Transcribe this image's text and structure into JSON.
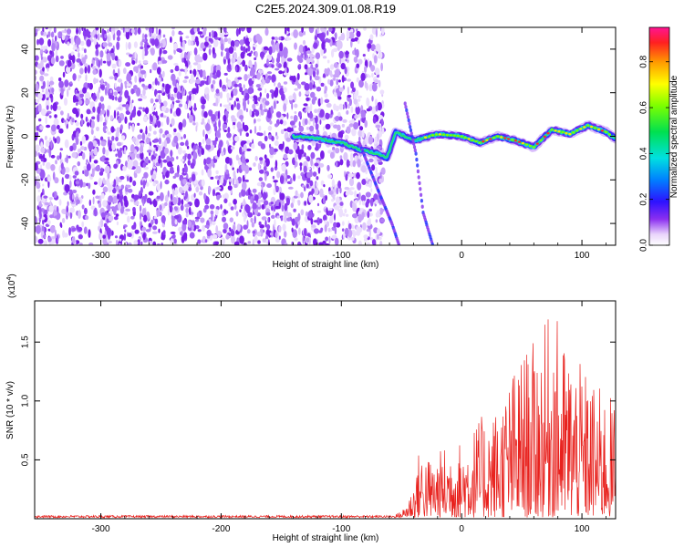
{
  "title": "C2E5.2024.309.01.08.R19",
  "chart_data": [
    {
      "type": "heatmap",
      "xlabel": "Height of straight line (km)",
      "ylabel": "Frequency (Hz)",
      "xlim": [
        -355,
        128
      ],
      "ylim": [
        -50,
        50
      ],
      "xticks": [
        "-300",
        "-200",
        "-100",
        "0",
        "100"
      ],
      "yticks": [
        "-40",
        "-20",
        "0",
        "20",
        "40"
      ],
      "colorbar": {
        "label": "Normalized spectral amplitude",
        "range": [
          0,
          0.95
        ],
        "ticks": [
          "0.0",
          "0.2",
          "0.4",
          "0.6",
          "0.8"
        ]
      },
      "noise_region_x": [
        -355,
        -73
      ],
      "ridge": [
        {
          "x": -140,
          "y": 0
        },
        {
          "x": -120,
          "y": -1
        },
        {
          "x": -100,
          "y": -3
        },
        {
          "x": -85,
          "y": -6
        },
        {
          "x": -70,
          "y": -8
        },
        {
          "x": -62,
          "y": -10
        },
        {
          "x": -55,
          "y": 2
        },
        {
          "x": -40,
          "y": -2
        },
        {
          "x": -20,
          "y": 1
        },
        {
          "x": 0,
          "y": 0
        },
        {
          "x": 15,
          "y": -3
        },
        {
          "x": 30,
          "y": 0
        },
        {
          "x": 45,
          "y": -2
        },
        {
          "x": 60,
          "y": -5
        },
        {
          "x": 75,
          "y": 3
        },
        {
          "x": 90,
          "y": 1
        },
        {
          "x": 105,
          "y": 5
        },
        {
          "x": 120,
          "y": 2
        },
        {
          "x": 128,
          "y": -1
        }
      ],
      "oblique_trace": [
        {
          "x": -47,
          "y": 15
        },
        {
          "x": -38,
          "y": -8
        },
        {
          "x": -32,
          "y": -35
        },
        {
          "x": -24,
          "y": -50
        }
      ],
      "oblique_trace_2": [
        {
          "x": -85,
          "y": -3
        },
        {
          "x": -70,
          "y": -24
        },
        {
          "x": -58,
          "y": -40
        },
        {
          "x": -52,
          "y": -50
        }
      ]
    },
    {
      "type": "line",
      "xlabel": "Height of straight line (km)",
      "ylabel": "SNR (10 * v/v)",
      "multiplier": "(x10",
      "multiplier_exp": "4",
      "multiplier_close": ")",
      "xlim": [
        -355,
        128
      ],
      "ylim": [
        0,
        1.85
      ],
      "xticks": [
        "-300",
        "-200",
        "-100",
        "0",
        "100"
      ],
      "yticks": [
        "0.5",
        "1.0",
        "1.5"
      ],
      "color": "#e8211d",
      "envelope": [
        {
          "x": -355,
          "y": 0.02
        },
        {
          "x": -60,
          "y": 0.02
        },
        {
          "x": -50,
          "y": 0.05
        },
        {
          "x": -45,
          "y": 0.15
        },
        {
          "x": -40,
          "y": 0.3
        },
        {
          "x": -35,
          "y": 0.6
        },
        {
          "x": -25,
          "y": 0.5
        },
        {
          "x": -10,
          "y": 0.65
        },
        {
          "x": 0,
          "y": 0.65
        },
        {
          "x": 15,
          "y": 0.85
        },
        {
          "x": 30,
          "y": 0.95
        },
        {
          "x": 40,
          "y": 1.2
        },
        {
          "x": 50,
          "y": 1.4
        },
        {
          "x": 60,
          "y": 1.5
        },
        {
          "x": 70,
          "y": 1.65
        },
        {
          "x": 75,
          "y": 1.85
        },
        {
          "x": 85,
          "y": 1.5
        },
        {
          "x": 95,
          "y": 1.35
        },
        {
          "x": 110,
          "y": 1.15
        },
        {
          "x": 128,
          "y": 1.0
        }
      ]
    }
  ]
}
